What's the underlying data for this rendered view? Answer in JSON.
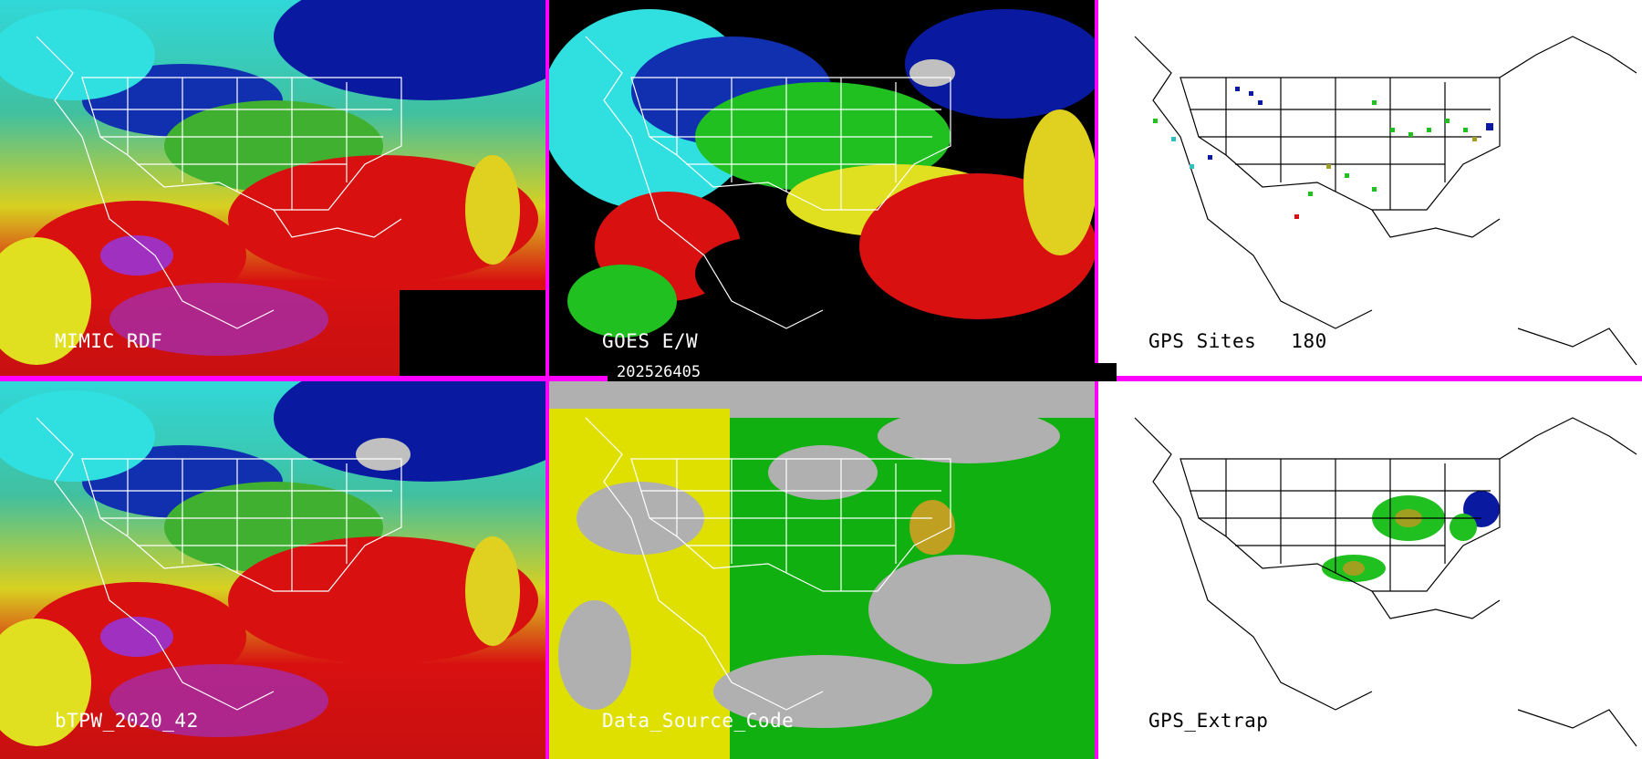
{
  "panels": {
    "mimic": {
      "label": "MIMIC RDF"
    },
    "goes": {
      "label": "GOES E/W"
    },
    "gps_sites": {
      "label": "GPS Sites",
      "count": "180"
    },
    "btpw": {
      "label": "bTPW_2020_42"
    },
    "data_source": {
      "label": "Data_Source_Code"
    },
    "gps_extrap": {
      "label": "GPS_Extrap"
    }
  },
  "timestamp": "202526405",
  "colors": {
    "border": "#ff00ff",
    "dry_blue": "#0a1aa0",
    "cyan": "#33e6e6",
    "green": "#20c020",
    "yellow": "#e6e600",
    "red": "#d81010",
    "magenta": "#a030c0",
    "gray": "#b0b0b0",
    "source_yellow": "#e0e000",
    "source_green": "#10b010"
  }
}
